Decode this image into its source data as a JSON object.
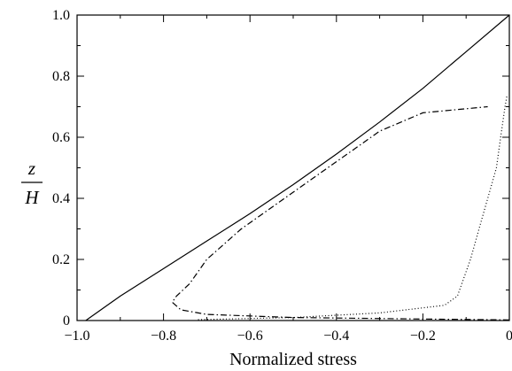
{
  "chart_data": {
    "type": "line",
    "title": "",
    "xlabel": "Normalized stress",
    "ylabel_numerator": "z",
    "ylabel_denominator": "H",
    "xlim": [
      -1.0,
      0.0
    ],
    "ylim": [
      0.0,
      1.0
    ],
    "x_ticks": [
      -1.0,
      -0.8,
      -0.6,
      -0.4,
      -0.2,
      0.0
    ],
    "x_tick_labels": [
      "−1.0",
      "−0.8",
      "−0.6",
      "−0.4",
      "−0.2",
      "0"
    ],
    "y_ticks": [
      0,
      0.2,
      0.4,
      0.6,
      0.8,
      1.0
    ],
    "y_tick_labels": [
      "0",
      "0.2",
      "0.4",
      "0.6",
      "0.8",
      "1.0"
    ],
    "grid": false,
    "legend": "none",
    "series": [
      {
        "style": "solid",
        "color": "#000000",
        "x": [
          -0.98,
          -0.9,
          -0.8,
          -0.7,
          -0.6,
          -0.5,
          -0.4,
          -0.3,
          -0.2,
          -0.1,
          0.0
        ],
        "y": [
          0.0,
          0.08,
          0.17,
          0.26,
          0.35,
          0.445,
          0.545,
          0.65,
          0.76,
          0.88,
          1.0
        ]
      },
      {
        "style": "dash-dot",
        "color": "#000000",
        "x": [
          0.0,
          -0.2,
          -0.5,
          -0.7,
          -0.76,
          -0.78,
          -0.77,
          -0.74,
          -0.7,
          -0.62,
          -0.52,
          -0.42,
          -0.35,
          -0.3,
          -0.2,
          -0.05
        ],
        "y": [
          0.002,
          0.005,
          0.01,
          0.02,
          0.035,
          0.06,
          0.08,
          0.12,
          0.2,
          0.3,
          0.4,
          0.5,
          0.57,
          0.62,
          0.68,
          0.7
        ]
      },
      {
        "style": "dotted",
        "color": "#000000",
        "x": [
          -0.72,
          -0.5,
          -0.3,
          -0.15,
          -0.12,
          -0.11,
          -0.09,
          -0.07,
          -0.05,
          -0.03,
          -0.02,
          -0.01,
          -0.005
        ],
        "y": [
          0.003,
          0.01,
          0.025,
          0.05,
          0.08,
          0.12,
          0.2,
          0.3,
          0.4,
          0.5,
          0.6,
          0.7,
          0.74
        ]
      }
    ]
  }
}
